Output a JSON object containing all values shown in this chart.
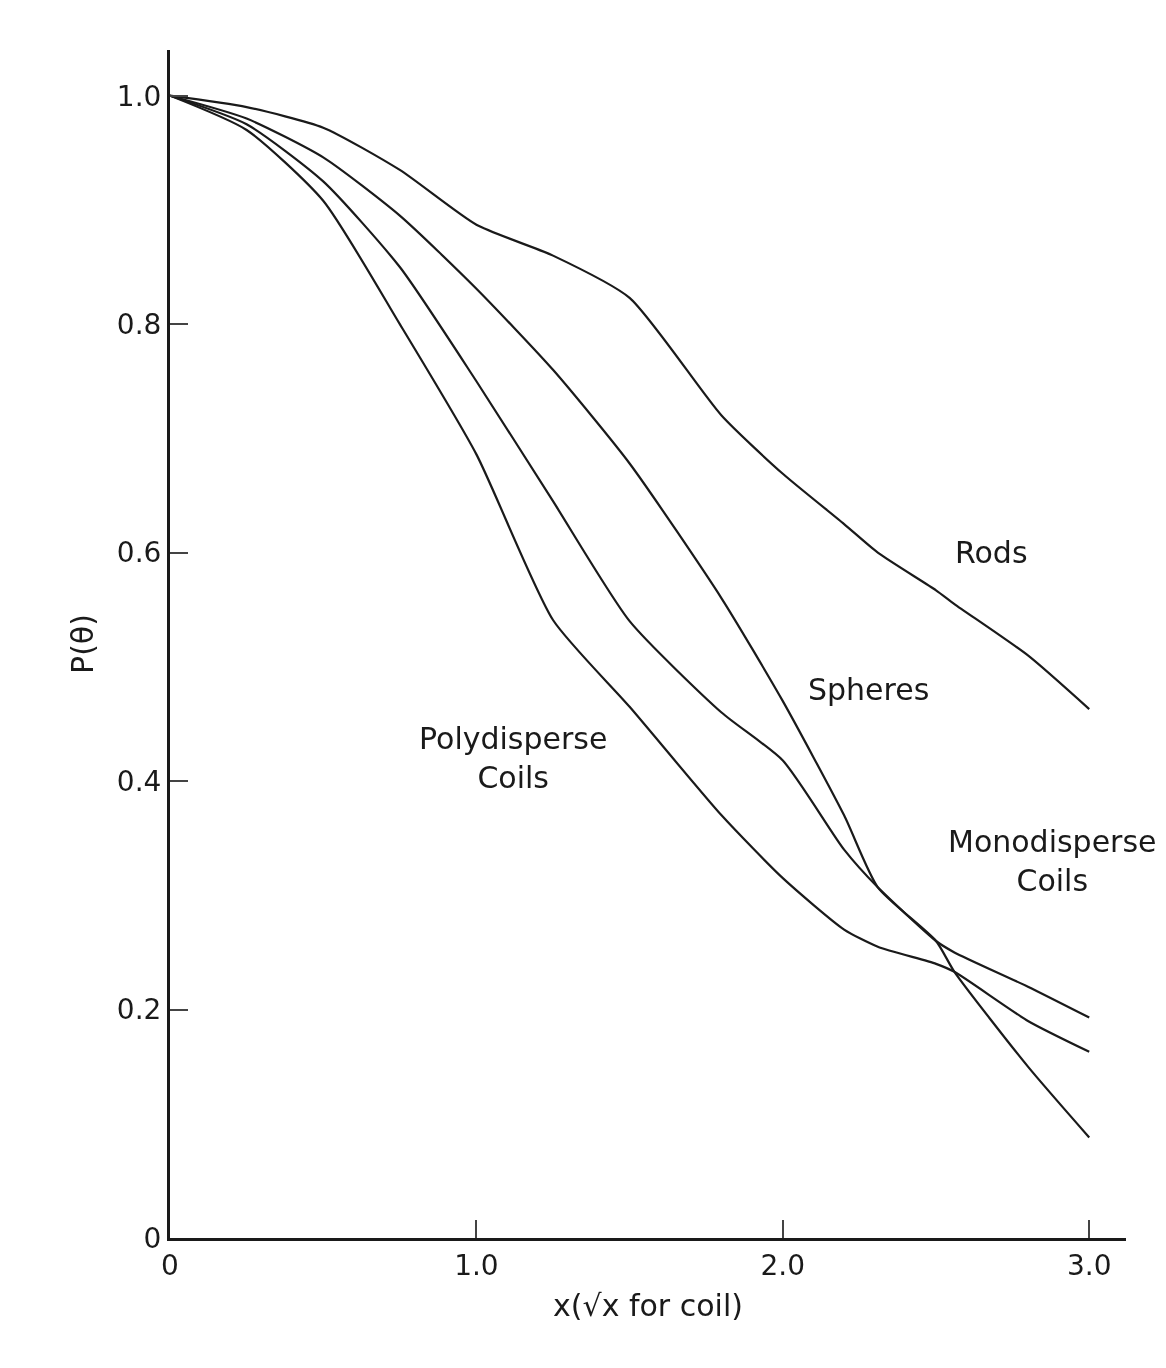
{
  "chart_data": {
    "type": "line",
    "xlabel": "x(√x for coil)",
    "ylabel": "P(θ)",
    "xlim": [
      0,
      3.12
    ],
    "ylim": [
      0,
      1.04
    ],
    "xticks": [
      0,
      {
        "value": 1.0,
        "label": "1.0"
      },
      {
        "value": 2.0,
        "label": "2.0"
      },
      {
        "value": 3.0,
        "label": "3.0"
      }
    ],
    "yticks": [
      0,
      0.2,
      0.4,
      0.6,
      0.8,
      {
        "value": 1.0,
        "label": "1.0"
      }
    ],
    "grid": false,
    "legend": false,
    "marker": "none",
    "line_style": "solid",
    "x": [
      0,
      0.25,
      0.5,
      0.75,
      1.0,
      1.25,
      1.5,
      1.8,
      2.0,
      2.2,
      2.31,
      2.5,
      2.56,
      2.8,
      3.0
    ],
    "series": [
      {
        "name": "Rods",
        "color": "#1a1a1a",
        "values": [
          1.0,
          0.99,
          0.972,
          0.935,
          0.887,
          0.86,
          0.823,
          0.72,
          0.669,
          0.625,
          0.6,
          0.567,
          0.555,
          0.51,
          0.463
        ]
      },
      {
        "name": "Spheres",
        "color": "#1a1a1a",
        "values": [
          1.0,
          0.98,
          0.946,
          0.895,
          0.831,
          0.76,
          0.678,
          0.56,
          0.47,
          0.37,
          0.307,
          0.26,
          0.233,
          0.15,
          0.088
        ]
      },
      {
        "name": "Monodisperse Coils",
        "color": "#1a1a1a",
        "values": [
          1.0,
          0.975,
          0.925,
          0.85,
          0.75,
          0.645,
          0.54,
          0.46,
          0.418,
          0.34,
          0.307,
          0.26,
          0.25,
          0.22,
          0.193
        ]
      },
      {
        "name": "Polydisperse Coils",
        "color": "#1a1a1a",
        "values": [
          1.0,
          0.97,
          0.908,
          0.8,
          0.686,
          0.541,
          0.465,
          0.37,
          0.315,
          0.27,
          0.255,
          0.24,
          0.233,
          0.19,
          0.163
        ]
      }
    ]
  }
}
